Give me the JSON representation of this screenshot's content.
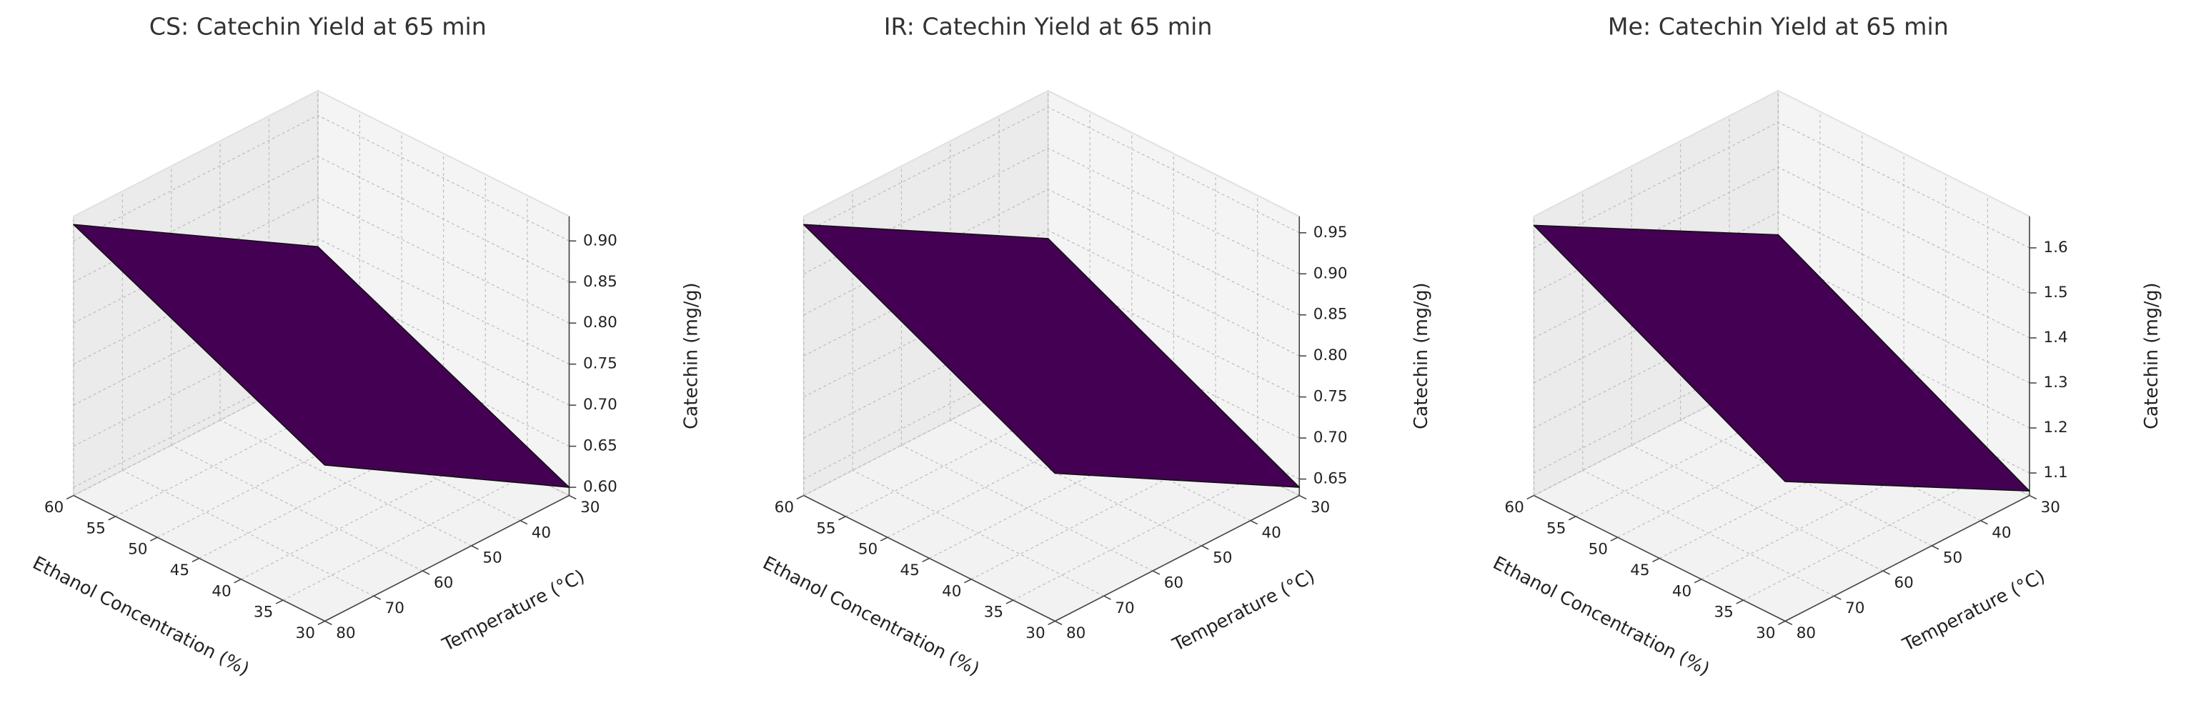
{
  "chart_data": [
    {
      "type": "surface",
      "title": "CS: Catechin Yield at 65 min",
      "xlabel": "Ethanol Concentration (%)",
      "ylabel": "Temperature (°C)",
      "zlabel": "Catechin (mg/g)",
      "x": [
        30,
        60
      ],
      "y": [
        30,
        80
      ],
      "z": [
        [
          0.6,
          0.78
        ],
        [
          0.74,
          0.92
        ]
      ],
      "color": "#440154",
      "xlim": [
        30,
        60
      ],
      "ylim": [
        30,
        80
      ],
      "zlim": [
        0.59,
        0.93
      ],
      "xticks": [
        30,
        35,
        40,
        45,
        50,
        55,
        60
      ],
      "yticks": [
        30,
        40,
        50,
        60,
        70,
        80
      ],
      "zticks": [
        {
          "value": 0.6,
          "label": "0.60"
        },
        0.65,
        {
          "value": 0.7,
          "label": "0.70"
        },
        0.75,
        {
          "value": 0.8,
          "label": "0.80"
        },
        0.85,
        {
          "value": 0.9,
          "label": "0.90"
        }
      ],
      "grid": true
    },
    {
      "type": "surface",
      "title": "IR: Catechin Yield at 65 min",
      "xlabel": "Ethanol Concentration (%)",
      "ylabel": "Temperature (°C)",
      "zlabel": "Catechin (mg/g)",
      "x": [
        30,
        60
      ],
      "y": [
        30,
        80
      ],
      "z": [
        [
          0.64,
          0.81
        ],
        [
          0.79,
          0.96
        ]
      ],
      "color": "#440154",
      "xlim": [
        30,
        60
      ],
      "ylim": [
        30,
        80
      ],
      "zlim": [
        0.63,
        0.97
      ],
      "xticks": [
        30,
        35,
        40,
        45,
        50,
        55,
        60
      ],
      "yticks": [
        30,
        40,
        50,
        60,
        70,
        80
      ],
      "zticks": [
        0.65,
        {
          "value": 0.7,
          "label": "0.70"
        },
        0.75,
        {
          "value": 0.8,
          "label": "0.80"
        },
        0.85,
        {
          "value": 0.9,
          "label": "0.90"
        },
        0.95
      ],
      "grid": true
    },
    {
      "type": "surface",
      "title": "Me: Catechin Yield at 65 min",
      "xlabel": "Ethanol Concentration (%)",
      "ylabel": "Temperature (°C)",
      "zlabel": "Catechin (mg/g)",
      "x": [
        30,
        60
      ],
      "y": [
        30,
        80
      ],
      "z": [
        [
          1.06,
          1.36
        ],
        [
          1.35,
          1.65
        ]
      ],
      "color": "#440154",
      "xlim": [
        30,
        60
      ],
      "ylim": [
        30,
        80
      ],
      "zlim": [
        1.05,
        1.67
      ],
      "xticks": [
        30,
        35,
        40,
        45,
        50,
        55,
        60
      ],
      "yticks": [
        30,
        40,
        50,
        60,
        70,
        80
      ],
      "zticks": [
        1.1,
        1.2,
        1.3,
        1.4,
        1.5,
        1.6
      ],
      "grid": true
    }
  ]
}
